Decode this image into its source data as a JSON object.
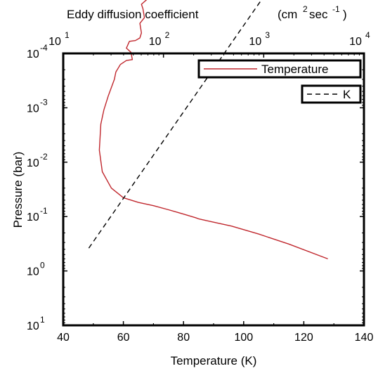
{
  "chart_data": {
    "type": "line",
    "xlabel": "Temperature (K)",
    "ylabel": "Pressure (bar)",
    "top_xlabel": "Eddy diffusion coefficient",
    "top_xunit": {
      "open": "(cm",
      "exp1": "2",
      "mid": "sec",
      "exp2": "-1",
      "close": ")"
    },
    "xlim": [
      40,
      140
    ],
    "ylim_log10": [
      -4,
      1
    ],
    "y_reversed": true,
    "top_xlim_log10": [
      1,
      4
    ],
    "x_ticks": [
      "40",
      "60",
      "80",
      "100",
      "120",
      "140"
    ],
    "y_ticks": [
      {
        "base": "10",
        "exp": "-4"
      },
      {
        "base": "10",
        "exp": "-3"
      },
      {
        "base": "10",
        "exp": "-2"
      },
      {
        "base": "10",
        "exp": "-1"
      },
      {
        "base": "10",
        "exp": "0"
      },
      {
        "base": "10",
        "exp": "1"
      }
    ],
    "top_ticks": [
      {
        "base": "10",
        "exp": "1"
      },
      {
        "base": "10",
        "exp": "2"
      },
      {
        "base": "10",
        "exp": "3"
      },
      {
        "base": "10",
        "exp": "4"
      }
    ],
    "series": [
      {
        "name": "Temperature",
        "color": "#c0272d",
        "style": "solid",
        "axis": "bottom",
        "points": [
          [
            128,
            0.6
          ],
          [
            115,
            0.32
          ],
          [
            105,
            0.21
          ],
          [
            96,
            0.15
          ],
          [
            88,
            0.12
          ],
          [
            85,
            0.11
          ],
          [
            84,
            0.105
          ],
          [
            80,
            0.09
          ],
          [
            75,
            0.075
          ],
          [
            70,
            0.063
          ],
          [
            65,
            0.055
          ],
          [
            60,
            0.045
          ],
          [
            56,
            0.03
          ],
          [
            53,
            0.015
          ],
          [
            52,
            0.006
          ],
          [
            52.5,
            0.002
          ],
          [
            53.5,
            0.0011
          ],
          [
            55,
            0.0006
          ],
          [
            57,
            0.0003
          ],
          [
            57.5,
            0.00022
          ],
          [
            59,
            0.00016
          ],
          [
            61,
            0.000135
          ],
          [
            63,
            0.00013
          ],
          [
            62.5,
            9.5e-05
          ],
          [
            61,
            8e-05
          ],
          [
            62,
            6e-05
          ],
          [
            64,
            5.8e-05
          ],
          [
            65.5,
            5.2e-05
          ],
          [
            66,
            4.2e-05
          ],
          [
            65.5,
            2.8e-05
          ],
          [
            67,
            2.2e-05
          ],
          [
            66.5,
            1.5e-05
          ],
          [
            66,
            1.25e-05
          ],
          [
            68,
            1e-05
          ],
          [
            73,
            8.5e-06
          ],
          [
            82,
            6.8e-06
          ],
          [
            92,
            5.8e-06
          ],
          [
            102,
            5.2e-06
          ],
          [
            108,
            4.8e-06
          ],
          [
            110,
            4e-06
          ],
          [
            112,
            3.3e-06
          ],
          [
            113,
            3e-06
          ]
        ]
      },
      {
        "name": "K",
        "color": "#000000",
        "style": "dashed",
        "axis": "top",
        "points": [
          [
            18,
            0.38
          ],
          [
            1400,
            3.7e-06
          ]
        ]
      }
    ]
  }
}
